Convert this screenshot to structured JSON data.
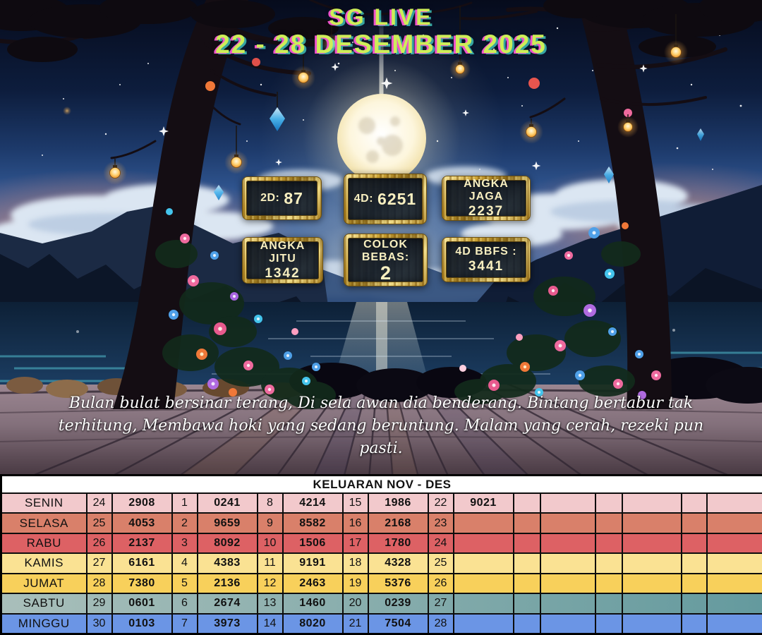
{
  "banner": {
    "title": "SG LIVE",
    "date_range": "22 - 28 DESEMBER 2025",
    "title_color": "#cdee58",
    "glitch_pink": "#ef52cc",
    "glitch_cyan": "#48e2d6"
  },
  "predictions": [
    {
      "label": "2D:",
      "value": "87"
    },
    {
      "label": "4D:",
      "value": "6251"
    },
    {
      "label": "ANGKA JAGA",
      "value": "2237"
    },
    {
      "label": "ANGKA JITU",
      "value": "1342"
    },
    {
      "label": "COLOK BEBAS:",
      "value": "2"
    },
    {
      "label": "4D BBFS :",
      "value": "3441"
    }
  ],
  "poem": {
    "lines": [
      "Bulan bulat bersinar terang, Di sela awan dia benderang. Bintang bertabur tak",
      "terhitung, Membawa hoki yang sedang beruntung. Malam yang cerah, rezeki pun",
      "pasti."
    ]
  },
  "table": {
    "title": "KELUARAN NOV - DES",
    "rows": [
      {
        "day": "SENIN",
        "color": "#f2c9cc",
        "cells": [
          "24",
          "2908",
          "1",
          "0241",
          "8",
          "4214",
          "15",
          "1986",
          "22",
          "9021",
          "",
          "",
          "",
          "",
          "",
          ""
        ]
      },
      {
        "day": "SELASA",
        "color": "#d9806a",
        "cells": [
          "25",
          "4053",
          "2",
          "9659",
          "9",
          "8582",
          "16",
          "2168",
          "23",
          "",
          "",
          "",
          "",
          "",
          "",
          ""
        ]
      },
      {
        "day": "RABU",
        "color": "#dd6164",
        "cells": [
          "26",
          "2137",
          "3",
          "8092",
          "10",
          "1506",
          "17",
          "1780",
          "24",
          "",
          "",
          "",
          "",
          "",
          "",
          ""
        ]
      },
      {
        "day": "KAMIS",
        "color": "#fae293",
        "cells": [
          "27",
          "6161",
          "4",
          "4383",
          "11",
          "9191",
          "18",
          "4328",
          "25",
          "",
          "",
          "",
          "",
          "",
          "",
          ""
        ]
      },
      {
        "day": "JUMAT",
        "color": "#f8d05b",
        "cells": [
          "28",
          "7380",
          "5",
          "2136",
          "12",
          "2463",
          "19",
          "5376",
          "26",
          "",
          "",
          "",
          "",
          "",
          "",
          ""
        ]
      },
      {
        "day": "SABTU",
        "color": "#a9bfba",
        "color_end": "#649a9e",
        "cells": [
          "29",
          "0601",
          "6",
          "2674",
          "13",
          "1460",
          "20",
          "0239",
          "27",
          "",
          "",
          "",
          "",
          "",
          "",
          ""
        ]
      },
      {
        "day": "MINGGU",
        "color": "#6b95e5",
        "cells": [
          "30",
          "0103",
          "7",
          "3973",
          "14",
          "8020",
          "21",
          "7504",
          "28",
          "",
          "",
          "",
          "",
          "",
          "",
          ""
        ]
      }
    ]
  }
}
